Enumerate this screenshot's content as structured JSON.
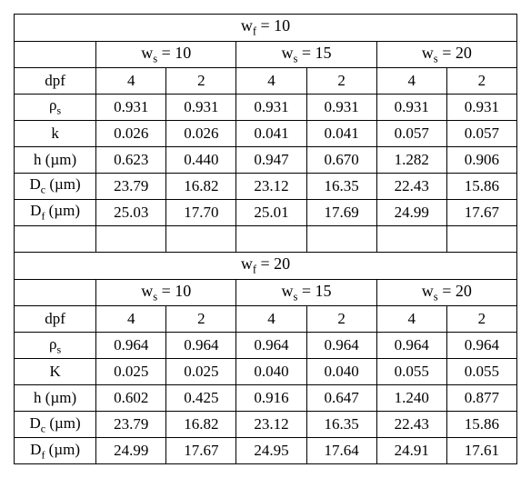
{
  "table": {
    "border_color": "#000000",
    "background_color": "#ffffff",
    "font_family": "Times New Roman",
    "base_fontsize": 17,
    "header_fontsize": 18,
    "col_count": 7,
    "col0_width": 90,
    "colN_width": 77,
    "section1": {
      "title_html": "w<sub>f</sub> = 10",
      "ws_labels_html": [
        "w<sub>s</sub> = 10",
        "w<sub>s</sub> = 15",
        "w<sub>s</sub> = 20"
      ],
      "dpf_label": "dpf",
      "dpf_values": [
        "4",
        "2",
        "4",
        "2",
        "4",
        "2"
      ],
      "rows": [
        {
          "label_html": "ρ<sub>s</sub>",
          "values": [
            "0.931",
            "0.931",
            "0.931",
            "0.931",
            "0.931",
            "0.931"
          ]
        },
        {
          "label_html": "k",
          "values": [
            "0.026",
            "0.026",
            "0.041",
            "0.041",
            "0.057",
            "0.057"
          ]
        },
        {
          "label_html": "h (µm)",
          "values": [
            "0.623",
            "0.440",
            "0.947",
            "0.670",
            "1.282",
            "0.906"
          ]
        },
        {
          "label_html": "D<sub>c</sub> (µm)",
          "values": [
            "23.79",
            "16.82",
            "23.12",
            "16.35",
            "22.43",
            "15.86"
          ]
        },
        {
          "label_html": "D<sub>f</sub> (µm)",
          "values": [
            "25.03",
            "17.70",
            "25.01",
            "17.69",
            "24.99",
            "17.67"
          ]
        }
      ]
    },
    "section2": {
      "title_html": "w<sub>f</sub> = 20",
      "ws_labels_html": [
        "w<sub>s</sub> = 10",
        "w<sub>s</sub> = 15",
        "w<sub>s</sub> = 20"
      ],
      "dpf_label": "dpf",
      "dpf_values": [
        "4",
        "2",
        "4",
        "2",
        "4",
        "2"
      ],
      "rows": [
        {
          "label_html": "ρ<sub>s</sub>",
          "values": [
            "0.964",
            "0.964",
            "0.964",
            "0.964",
            "0.964",
            "0.964"
          ]
        },
        {
          "label_html": "K",
          "values": [
            "0.025",
            "0.025",
            "0.040",
            "0.040",
            "0.055",
            "0.055"
          ]
        },
        {
          "label_html": "h (µm)",
          "values": [
            "0.602",
            "0.425",
            "0.916",
            "0.647",
            "1.240",
            "0.877"
          ]
        },
        {
          "label_html": "D<sub>c</sub> (µm)",
          "values": [
            "23.79",
            "16.82",
            "23.12",
            "16.35",
            "22.43",
            "15.86"
          ]
        },
        {
          "label_html": "D<sub>f</sub> (µm)",
          "values": [
            "24.99",
            "17.67",
            "24.95",
            "17.64",
            "24.91",
            "17.61"
          ]
        }
      ]
    }
  }
}
